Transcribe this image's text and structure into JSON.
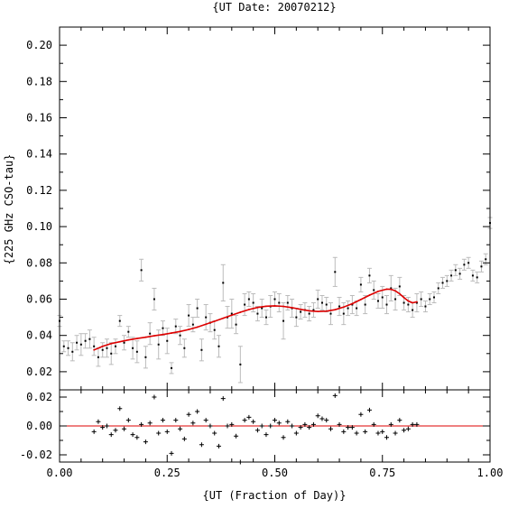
{
  "chart_data": [
    {
      "type": "scatter",
      "title": "{UT Date: 20070212}",
      "ylabel": "{225 GHz CSO-tau}",
      "xlim": [
        0.0,
        1.0
      ],
      "ylim": [
        0.01,
        0.21
      ],
      "yticks": [
        "0.02",
        "0.04",
        "0.06",
        "0.08",
        "0.10",
        "0.12",
        "0.14",
        "0.16",
        "0.18",
        "0.20"
      ],
      "grid": false,
      "series": [
        {
          "kind": "measurements-with-errorbars",
          "color": "#000000",
          "errorbar_color": "#bbbbbb",
          "points": [
            [
              0.0,
              0.048,
              0.003
            ],
            [
              0.01,
              0.034,
              0.003
            ],
            [
              0.02,
              0.033,
              0.004
            ],
            [
              0.03,
              0.031,
              0.005
            ],
            [
              0.04,
              0.036,
              0.004
            ],
            [
              0.05,
              0.035,
              0.006
            ],
            [
              0.06,
              0.037,
              0.004
            ],
            [
              0.07,
              0.038,
              0.005
            ],
            [
              0.08,
              0.034,
              0.005
            ],
            [
              0.09,
              0.028,
              0.005
            ],
            [
              0.1,
              0.032,
              0.004
            ],
            [
              0.11,
              0.033,
              0.005
            ],
            [
              0.12,
              0.03,
              0.006
            ],
            [
              0.13,
              0.034,
              0.004
            ],
            [
              0.14,
              0.048,
              0.003
            ],
            [
              0.15,
              0.036,
              0.004
            ],
            [
              0.16,
              0.042,
              0.003
            ],
            [
              0.17,
              0.033,
              0.006
            ],
            [
              0.18,
              0.031,
              0.006
            ],
            [
              0.19,
              0.076,
              0.006
            ],
            [
              0.2,
              0.028,
              0.006
            ],
            [
              0.21,
              0.041,
              0.006
            ],
            [
              0.22,
              0.06,
              0.006
            ],
            [
              0.23,
              0.035,
              0.008
            ],
            [
              0.24,
              0.044,
              0.004
            ],
            [
              0.25,
              0.037,
              0.007
            ],
            [
              0.26,
              0.022,
              0.003
            ],
            [
              0.27,
              0.045,
              0.004
            ],
            [
              0.28,
              0.04,
              0.005
            ],
            [
              0.29,
              0.033,
              0.005
            ],
            [
              0.3,
              0.051,
              0.006
            ],
            [
              0.31,
              0.046,
              0.004
            ],
            [
              0.32,
              0.055,
              0.005
            ],
            [
              0.33,
              0.032,
              0.006
            ],
            [
              0.34,
              0.05,
              0.007
            ],
            [
              0.35,
              0.047,
              0.005
            ],
            [
              0.36,
              0.043,
              0.005
            ],
            [
              0.37,
              0.034,
              0.006
            ],
            [
              0.38,
              0.069,
              0.01
            ],
            [
              0.39,
              0.05,
              0.006
            ],
            [
              0.4,
              0.052,
              0.008
            ],
            [
              0.41,
              0.046,
              0.005
            ],
            [
              0.42,
              0.024,
              0.01
            ],
            [
              0.43,
              0.057,
              0.006
            ],
            [
              0.44,
              0.06,
              0.004
            ],
            [
              0.45,
              0.058,
              0.005
            ],
            [
              0.46,
              0.052,
              0.004
            ],
            [
              0.47,
              0.055,
              0.005
            ],
            [
              0.48,
              0.05,
              0.004
            ],
            [
              0.49,
              0.056,
              0.006
            ],
            [
              0.5,
              0.06,
              0.004
            ],
            [
              0.51,
              0.058,
              0.005
            ],
            [
              0.52,
              0.048,
              0.01
            ],
            [
              0.53,
              0.058,
              0.004
            ],
            [
              0.54,
              0.055,
              0.005
            ],
            [
              0.55,
              0.05,
              0.005
            ],
            [
              0.56,
              0.053,
              0.004
            ],
            [
              0.57,
              0.054,
              0.004
            ],
            [
              0.58,
              0.052,
              0.004
            ],
            [
              0.59,
              0.054,
              0.004
            ],
            [
              0.6,
              0.06,
              0.005
            ],
            [
              0.61,
              0.058,
              0.004
            ],
            [
              0.62,
              0.057,
              0.004
            ],
            [
              0.63,
              0.052,
              0.006
            ],
            [
              0.64,
              0.075,
              0.008
            ],
            [
              0.65,
              0.056,
              0.005
            ],
            [
              0.66,
              0.052,
              0.006
            ],
            [
              0.67,
              0.055,
              0.004
            ],
            [
              0.68,
              0.057,
              0.005
            ],
            [
              0.69,
              0.055,
              0.004
            ],
            [
              0.7,
              0.068,
              0.004
            ],
            [
              0.71,
              0.057,
              0.005
            ],
            [
              0.72,
              0.073,
              0.004
            ],
            [
              0.73,
              0.065,
              0.005
            ],
            [
              0.74,
              0.059,
              0.004
            ],
            [
              0.75,
              0.061,
              0.006
            ],
            [
              0.76,
              0.057,
              0.005
            ],
            [
              0.77,
              0.066,
              0.007
            ],
            [
              0.78,
              0.06,
              0.006
            ],
            [
              0.79,
              0.067,
              0.005
            ],
            [
              0.8,
              0.058,
              0.004
            ],
            [
              0.81,
              0.057,
              0.004
            ],
            [
              0.82,
              0.054,
              0.004
            ],
            [
              0.83,
              0.058,
              0.005
            ],
            [
              0.84,
              0.06,
              0.004
            ],
            [
              0.85,
              0.056,
              0.003
            ],
            [
              0.86,
              0.06,
              0.003
            ],
            [
              0.87,
              0.061,
              0.003
            ],
            [
              0.88,
              0.066,
              0.003
            ],
            [
              0.89,
              0.069,
              0.003
            ],
            [
              0.9,
              0.07,
              0.003
            ],
            [
              0.91,
              0.073,
              0.003
            ],
            [
              0.92,
              0.076,
              0.003
            ],
            [
              0.93,
              0.074,
              0.003
            ],
            [
              0.94,
              0.079,
              0.003
            ],
            [
              0.95,
              0.08,
              0.003
            ],
            [
              0.96,
              0.073,
              0.003
            ],
            [
              0.97,
              0.072,
              0.003
            ],
            [
              0.98,
              0.078,
              0.003
            ],
            [
              0.99,
              0.082,
              0.003
            ],
            [
              1.0,
              0.102,
              0.003
            ]
          ]
        },
        {
          "kind": "polynomial-fit",
          "color": "#dd0000",
          "x_range": [
            0.08,
            0.83
          ],
          "points": [
            [
              0.08,
              0.032
            ],
            [
              0.1,
              0.034
            ],
            [
              0.12,
              0.0355
            ],
            [
              0.14,
              0.0365
            ],
            [
              0.16,
              0.0375
            ],
            [
              0.18,
              0.0383
            ],
            [
              0.2,
              0.039
            ],
            [
              0.22,
              0.0398
            ],
            [
              0.24,
              0.0405
            ],
            [
              0.26,
              0.0413
            ],
            [
              0.28,
              0.0422
            ],
            [
              0.3,
              0.0433
            ],
            [
              0.32,
              0.0446
            ],
            [
              0.34,
              0.0462
            ],
            [
              0.36,
              0.0478
            ],
            [
              0.38,
              0.0495
            ],
            [
              0.4,
              0.0512
            ],
            [
              0.42,
              0.0528
            ],
            [
              0.44,
              0.0543
            ],
            [
              0.46,
              0.0554
            ],
            [
              0.48,
              0.0561
            ],
            [
              0.5,
              0.0563
            ],
            [
              0.52,
              0.056
            ],
            [
              0.54,
              0.0553
            ],
            [
              0.56,
              0.0544
            ],
            [
              0.58,
              0.0536
            ],
            [
              0.6,
              0.0532
            ],
            [
              0.62,
              0.0534
            ],
            [
              0.64,
              0.0542
            ],
            [
              0.66,
              0.0556
            ],
            [
              0.68,
              0.0575
            ],
            [
              0.7,
              0.0598
            ],
            [
              0.72,
              0.0622
            ],
            [
              0.74,
              0.0643
            ],
            [
              0.76,
              0.0655
            ],
            [
              0.77,
              0.0654
            ],
            [
              0.78,
              0.0646
            ],
            [
              0.79,
              0.063
            ],
            [
              0.8,
              0.0609
            ],
            [
              0.81,
              0.059
            ],
            [
              0.82,
              0.058
            ],
            [
              0.83,
              0.0585
            ]
          ]
        }
      ]
    },
    {
      "type": "scatter",
      "panel": "residuals",
      "xlabel": "{UT (Fraction of Day)}",
      "xlim": [
        0.0,
        1.0
      ],
      "ylim": [
        -0.025,
        0.025
      ],
      "xticks": [
        "0.00",
        "0.25",
        "0.50",
        "0.75",
        "1.00"
      ],
      "yticks": [
        "-0.02",
        "0.00",
        "0.02"
      ],
      "zero_line_color": "#dd0000",
      "marker": "+",
      "points": [
        [
          0.08,
          -0.004
        ],
        [
          0.09,
          0.003
        ],
        [
          0.1,
          -0.001
        ],
        [
          0.11,
          0.0
        ],
        [
          0.12,
          -0.006
        ],
        [
          0.13,
          -0.003
        ],
        [
          0.14,
          0.012
        ],
        [
          0.15,
          -0.002
        ],
        [
          0.16,
          0.004
        ],
        [
          0.17,
          -0.006
        ],
        [
          0.18,
          -0.008
        ],
        [
          0.19,
          0.001
        ],
        [
          0.2,
          -0.011
        ],
        [
          0.21,
          0.002
        ],
        [
          0.22,
          0.02
        ],
        [
          0.23,
          -0.005
        ],
        [
          0.24,
          0.004
        ],
        [
          0.25,
          -0.004
        ],
        [
          0.26,
          -0.019
        ],
        [
          0.27,
          0.004
        ],
        [
          0.28,
          -0.002
        ],
        [
          0.29,
          -0.009
        ],
        [
          0.3,
          0.008
        ],
        [
          0.31,
          0.002
        ],
        [
          0.32,
          0.01
        ],
        [
          0.33,
          -0.013
        ],
        [
          0.34,
          0.004
        ],
        [
          0.35,
          0.0
        ],
        [
          0.36,
          -0.005
        ],
        [
          0.37,
          -0.014
        ],
        [
          0.38,
          0.019
        ],
        [
          0.39,
          0.0
        ],
        [
          0.4,
          0.001
        ],
        [
          0.41,
          -0.007
        ],
        [
          0.42,
          -0.029
        ],
        [
          0.43,
          0.004
        ],
        [
          0.44,
          0.006
        ],
        [
          0.45,
          0.003
        ],
        [
          0.46,
          -0.003
        ],
        [
          0.47,
          0.0
        ],
        [
          0.48,
          -0.006
        ],
        [
          0.49,
          0.0
        ],
        [
          0.5,
          0.004
        ],
        [
          0.51,
          0.002
        ],
        [
          0.52,
          -0.008
        ],
        [
          0.53,
          0.003
        ],
        [
          0.54,
          0.0
        ],
        [
          0.55,
          -0.005
        ],
        [
          0.56,
          -0.001
        ],
        [
          0.57,
          0.001
        ],
        [
          0.58,
          -0.001
        ],
        [
          0.59,
          0.001
        ],
        [
          0.6,
          0.007
        ],
        [
          0.61,
          0.005
        ],
        [
          0.62,
          0.004
        ],
        [
          0.63,
          -0.002
        ],
        [
          0.64,
          0.021
        ],
        [
          0.65,
          0.001
        ],
        [
          0.66,
          -0.004
        ],
        [
          0.67,
          -0.001
        ],
        [
          0.68,
          -0.001
        ],
        [
          0.69,
          -0.005
        ],
        [
          0.7,
          0.008
        ],
        [
          0.71,
          -0.004
        ],
        [
          0.72,
          0.011
        ],
        [
          0.73,
          0.001
        ],
        [
          0.74,
          -0.005
        ],
        [
          0.75,
          -0.004
        ],
        [
          0.76,
          -0.008
        ],
        [
          0.77,
          0.001
        ],
        [
          0.78,
          -0.005
        ],
        [
          0.79,
          0.004
        ],
        [
          0.8,
          -0.003
        ],
        [
          0.81,
          -0.002
        ],
        [
          0.82,
          0.001
        ],
        [
          0.83,
          0.001
        ]
      ]
    }
  ]
}
